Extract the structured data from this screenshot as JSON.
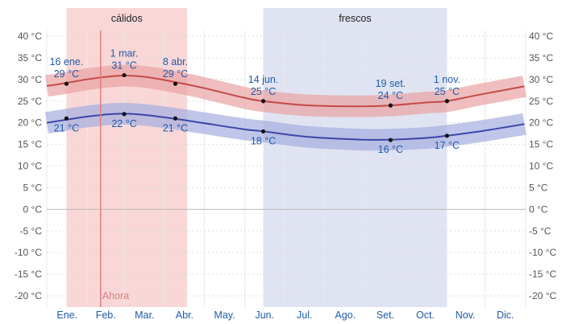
{
  "chart_data": {
    "type": "line",
    "title": "",
    "xlabel": "",
    "ylabel": "",
    "ylim": [
      -20,
      40
    ],
    "yticks": [
      {
        "value": 40,
        "label": "40 °C"
      },
      {
        "value": 35,
        "label": "35 °C"
      },
      {
        "value": 30,
        "label": "30 °C"
      },
      {
        "value": 25,
        "label": "25 °C"
      },
      {
        "value": 20,
        "label": "20 °C"
      },
      {
        "value": 15,
        "label": "15 °C"
      },
      {
        "value": 10,
        "label": "10 °C"
      },
      {
        "value": 5,
        "label": "5 °C"
      },
      {
        "value": 0,
        "label": "0 °C"
      },
      {
        "value": -5,
        "label": "-5 °C"
      },
      {
        "value": -10,
        "label": "-10 °C"
      },
      {
        "value": -15,
        "label": "-15 °C"
      },
      {
        "value": -20,
        "label": "-20 °C"
      }
    ],
    "months": [
      "Ene.",
      "Feb.",
      "Mar.",
      "Abr.",
      "May.",
      "Jun.",
      "Jul.",
      "Ago.",
      "Set.",
      "Oct.",
      "Nov.",
      "Dic."
    ],
    "seasons": [
      {
        "label": "cálidos",
        "start_day": 15,
        "end_day": 107,
        "color": "#f7c9c9"
      },
      {
        "label": "frescos",
        "start_day": 165,
        "end_day": 305,
        "color": "#d4d9ee"
      }
    ],
    "now_marker": {
      "label": "Ahora",
      "day": 41,
      "color": "#e07c7c"
    },
    "series": [
      {
        "name": "",
        "color": "#c44a4a",
        "band_color": "#eaa3a3",
        "band_width": 2.5,
        "x": [
          0,
          15,
          30,
          45,
          59,
          75,
          98,
          120,
          150,
          165,
          200,
          240,
          262,
          290,
          305,
          330,
          364
        ],
        "y": [
          28.5,
          29.2,
          30.0,
          30.6,
          30.9,
          30.6,
          29.4,
          28.0,
          25.8,
          25.0,
          24.0,
          23.8,
          24.0,
          24.7,
          25.0,
          26.5,
          28.4
        ]
      },
      {
        "name": "",
        "color": "#3c46a8",
        "band_color": "#a5aee0",
        "band_width": 2.5,
        "x": [
          0,
          15,
          30,
          45,
          59,
          75,
          98,
          120,
          150,
          165,
          200,
          240,
          262,
          290,
          305,
          330,
          364
        ],
        "y": [
          20.0,
          20.7,
          21.4,
          21.9,
          22.1,
          21.8,
          20.9,
          19.9,
          18.5,
          18.0,
          16.7,
          16.1,
          16.1,
          16.5,
          17.0,
          18.0,
          19.7
        ]
      }
    ],
    "annotations": [
      {
        "day": 15,
        "value": 29,
        "series": 0,
        "date": "16 ene.",
        "value_label": "29 °C",
        "position": "above"
      },
      {
        "day": 59,
        "value": 31,
        "series": 0,
        "date": "1 mar.",
        "value_label": "31 °C",
        "position": "above"
      },
      {
        "day": 98,
        "value": 29,
        "series": 0,
        "date": "8 abr.",
        "value_label": "29 °C",
        "position": "above"
      },
      {
        "day": 165,
        "value": 25,
        "series": 0,
        "date": "14 jun.",
        "value_label": "25 °C",
        "position": "above"
      },
      {
        "day": 262,
        "value": 24,
        "series": 0,
        "date": "19 set.",
        "value_label": "24 °C",
        "position": "above"
      },
      {
        "day": 305,
        "value": 25,
        "series": 0,
        "date": "1 nov.",
        "value_label": "25 °C",
        "position": "above"
      },
      {
        "day": 15,
        "value": 21,
        "series": 1,
        "date": "",
        "value_label": "21 °C",
        "position": "below"
      },
      {
        "day": 59,
        "value": 22,
        "series": 1,
        "date": "",
        "value_label": "22 °C",
        "position": "below"
      },
      {
        "day": 98,
        "value": 21,
        "series": 1,
        "date": "",
        "value_label": "21 °C",
        "position": "below"
      },
      {
        "day": 165,
        "value": 18,
        "series": 1,
        "date": "",
        "value_label": "18 °C",
        "position": "below"
      },
      {
        "day": 262,
        "value": 16,
        "series": 1,
        "date": "",
        "value_label": "16 °C",
        "position": "below"
      },
      {
        "day": 305,
        "value": 17,
        "series": 1,
        "date": "",
        "value_label": "17 °C",
        "position": "below"
      }
    ]
  }
}
